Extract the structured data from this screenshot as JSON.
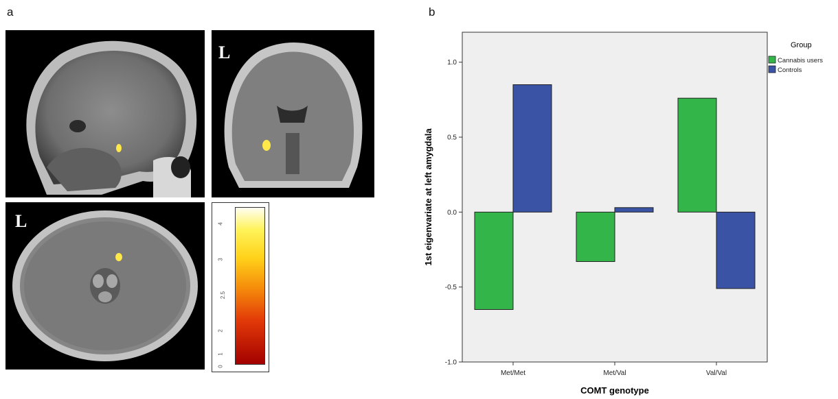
{
  "panel_a": {
    "label": "a",
    "orientation_label": "L",
    "colorbar_ticks": [
      "4",
      "3",
      "2.5",
      "2",
      "1",
      "0"
    ]
  },
  "panel_b": {
    "label": "b"
  },
  "colors": {
    "cannabis_users": "#33b54a",
    "controls": "#3a53a4",
    "plot_background": "#efefef",
    "activation": "#ffe84a"
  },
  "chart_data": {
    "type": "bar",
    "title": "",
    "xlabel": "COMT genotype",
    "ylabel": "1st eigenvariate at left amygdala",
    "categories": [
      "Met/Met",
      "Met/Val",
      "Val/Val"
    ],
    "series": [
      {
        "name": "Cannabis users",
        "values": [
          -0.65,
          -0.33,
          0.76
        ]
      },
      {
        "name": "Controls",
        "values": [
          0.85,
          0.03,
          -0.51
        ]
      }
    ],
    "ylim": [
      -1.0,
      1.2
    ],
    "yticks": [
      "1.0",
      "0.5",
      "0.0",
      "-0.5",
      "-1.0"
    ],
    "ytick_values": [
      1.0,
      0.5,
      0.0,
      -0.5,
      -1.0
    ],
    "legend_title": "Group",
    "legend_position": "right",
    "grid": false
  }
}
